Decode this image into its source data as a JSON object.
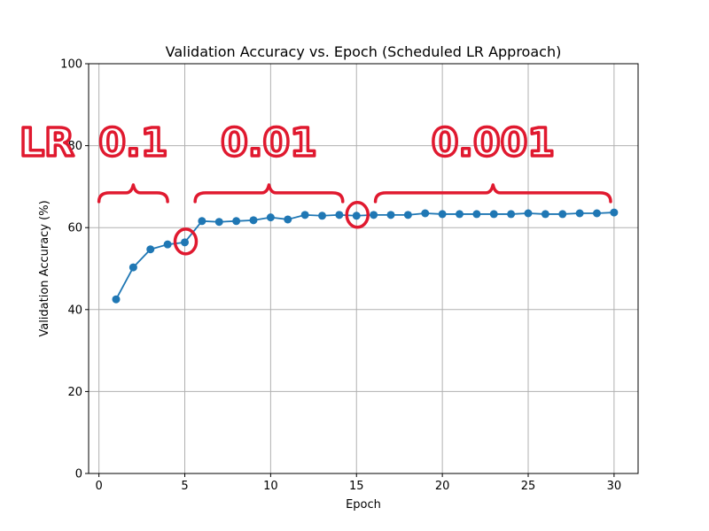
{
  "chart_data": {
    "type": "line",
    "title": "Validation Accuracy vs. Epoch (Scheduled LR Approach)",
    "xlabel": "Epoch",
    "ylabel": "Validation Accuracy (%)",
    "xlim": [
      -0.6,
      31.4
    ],
    "ylim": [
      0,
      100
    ],
    "xticks": [
      0,
      5,
      10,
      15,
      20,
      25,
      30
    ],
    "yticks": [
      0,
      20,
      40,
      60,
      80,
      100
    ],
    "grid": true,
    "series": [
      {
        "color": "#1f77b4",
        "marker": "circle",
        "x": [
          1,
          2,
          3,
          4,
          5,
          6,
          7,
          8,
          9,
          10,
          11,
          12,
          13,
          14,
          15,
          16,
          17,
          18,
          19,
          20,
          21,
          22,
          23,
          24,
          25,
          26,
          27,
          28,
          29,
          30
        ],
        "y": [
          42.5,
          50.3,
          54.7,
          55.9,
          56.4,
          61.6,
          61.4,
          61.6,
          61.8,
          62.5,
          62.0,
          63.1,
          62.9,
          63.1,
          62.9,
          63.1,
          63.1,
          63.1,
          63.5,
          63.3,
          63.3,
          63.3,
          63.3,
          63.3,
          63.5,
          63.3,
          63.3,
          63.5,
          63.5,
          63.7
        ]
      }
    ],
    "annotations": {
      "color": "#e0192f",
      "lr_label": "LR",
      "phases": [
        {
          "label": "0.1",
          "epochs": [
            0,
            4
          ]
        },
        {
          "label": "0.01",
          "epochs": [
            5.6,
            14.2
          ]
        },
        {
          "label": "0.001",
          "epochs": [
            16.1,
            29.8
          ]
        }
      ],
      "circled_epochs": [
        5,
        15
      ]
    }
  }
}
